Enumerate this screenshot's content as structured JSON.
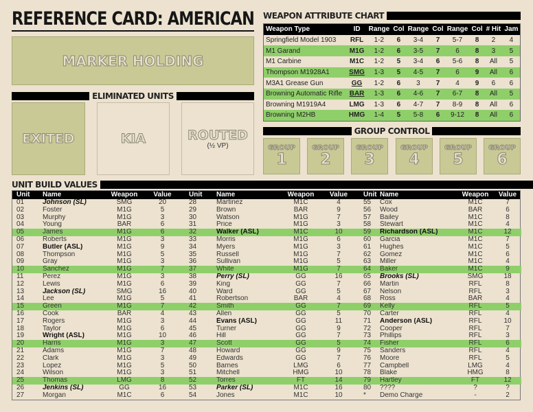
{
  "title": "REFERENCE CARD: AMERICAN",
  "marker_holding": "MARKER HOLDING",
  "eliminated": {
    "heading": "ELIMINATED UNITS",
    "exited": "EXITED",
    "kia": "KIA",
    "routed": "ROUTED",
    "routed_note": "(½ VP)"
  },
  "weapon_chart": {
    "heading": "WEAPON ATTRIBUTE CHART",
    "columns": [
      "Weapon Type",
      "ID",
      "Range",
      "Col",
      "Range",
      "Col",
      "Range",
      "Col",
      "# Hit",
      "Jam"
    ],
    "rows": [
      [
        "Springfield Model 1903",
        "RFL",
        "1-2",
        "6",
        "3-4",
        "7",
        "5-7",
        "8",
        "2",
        "4"
      ],
      [
        "M1 Garand",
        "M1G",
        "1-2",
        "6",
        "3-5",
        "7",
        "6",
        "8",
        "3",
        "5"
      ],
      [
        "M1 Carbine",
        "M1C",
        "1-2",
        "5",
        "3-4",
        "6",
        "5-6",
        "8",
        "All",
        "5"
      ],
      [
        "Thompson M1928A1",
        "SMG",
        "1-3",
        "5",
        "4-5",
        "7",
        "6",
        "9",
        "All",
        "6"
      ],
      [
        "M3A1 Grease Gun",
        "GG",
        "1-2",
        "6",
        "3",
        "7",
        "4",
        "9",
        "6",
        "6"
      ],
      [
        "Browning Automatic Rifle",
        "BAR",
        "1-3",
        "6",
        "4-6",
        "7",
        "6-7",
        "8",
        "All",
        "5"
      ],
      [
        "Browning M1919A4",
        "LMG",
        "1-3",
        "6",
        "4-7",
        "7",
        "8-9",
        "8",
        "All",
        "6"
      ],
      [
        "Browning M2HB",
        "HMG",
        "1-4",
        "5",
        "5-8",
        "6",
        "9-12",
        "8",
        "All",
        "6"
      ]
    ],
    "underlined_ids": [
      "SMG",
      "GG",
      "BAR"
    ],
    "highlight_rows": [
      1,
      3,
      5,
      7
    ]
  },
  "group_control": {
    "heading": "GROUP CONTROL",
    "label": "GROUP",
    "groups": [
      "1",
      "2",
      "3",
      "4",
      "5",
      "6"
    ]
  },
  "unit_build": {
    "heading": "UNIT BUILD VALUES",
    "columns": [
      "Unit",
      "Name",
      "Weapon",
      "Value"
    ],
    "highlight_color": "#8fcf6a",
    "groups": [
      [
        [
          "01",
          "Johnson (SL)",
          "SMG",
          "20",
          "sl"
        ],
        [
          "02",
          "Foster",
          "M1G",
          "5",
          ""
        ],
        [
          "03",
          "Murphy",
          "M1G",
          "3",
          ""
        ],
        [
          "04",
          "Young",
          "BAR",
          "6",
          ""
        ],
        [
          "05",
          "James",
          "M1G",
          "6",
          "g"
        ],
        [
          "06",
          "Roberts",
          "M1G",
          "3",
          ""
        ],
        [
          "07",
          "Butler (ASL)",
          "M1G",
          "9",
          "asl"
        ],
        [
          "08",
          "Thompson",
          "M1G",
          "5",
          ""
        ],
        [
          "09",
          "Gray",
          "M1G",
          "3",
          ""
        ],
        [
          "10",
          "Sanchez",
          "M1G",
          "7",
          "g"
        ],
        [
          "11",
          "Perez",
          "M1G",
          "3",
          ""
        ],
        [
          "12",
          "Lewis",
          "M1G",
          "6",
          ""
        ],
        [
          "13",
          "Jackson (SL)",
          "SMG",
          "16",
          "sl"
        ],
        [
          "14",
          "Lee",
          "M1G",
          "5",
          ""
        ],
        [
          "15",
          "Green",
          "M1G",
          "7",
          "g"
        ],
        [
          "16",
          "Cook",
          "BAR",
          "4",
          ""
        ],
        [
          "17",
          "Rogers",
          "M1G",
          "3",
          ""
        ],
        [
          "18",
          "Taylor",
          "M1G",
          "6",
          ""
        ],
        [
          "19",
          "Wright (ASL)",
          "M1G",
          "10",
          "asl"
        ],
        [
          "20",
          "Harris",
          "M1G",
          "3",
          "g"
        ],
        [
          "21",
          "Adams",
          "M1G",
          "7",
          ""
        ],
        [
          "22",
          "Clark",
          "M1G",
          "3",
          ""
        ],
        [
          "23",
          "Lopez",
          "M1G",
          "5",
          ""
        ],
        [
          "24",
          "Wilson",
          "M1G",
          "3",
          ""
        ],
        [
          "25",
          "Thomas",
          "LMG",
          "8",
          "g"
        ],
        [
          "26",
          "Jenkins (SL)",
          "GG",
          "16",
          "sl"
        ],
        [
          "27",
          "Morgan",
          "M1C",
          "6",
          ""
        ]
      ],
      [
        [
          "28",
          "Martinez",
          "M1C",
          "4",
          ""
        ],
        [
          "29",
          "Brown",
          "BAR",
          "9",
          ""
        ],
        [
          "30",
          "Watson",
          "M1G",
          "7",
          ""
        ],
        [
          "31",
          "Price",
          "M1G",
          "3",
          ""
        ],
        [
          "32",
          "Walker (ASL)",
          "M1C",
          "10",
          "g asl"
        ],
        [
          "33",
          "Morris",
          "M1G",
          "6",
          ""
        ],
        [
          "34",
          "Myers",
          "M1G",
          "3",
          ""
        ],
        [
          "35",
          "Russell",
          "M1G",
          "7",
          ""
        ],
        [
          "36",
          "Sullivan",
          "M1G",
          "5",
          ""
        ],
        [
          "37",
          "White",
          "M1G",
          "7",
          "g"
        ],
        [
          "38",
          "Perry (SL)",
          "GG",
          "16",
          "sl"
        ],
        [
          "39",
          "King",
          "GG",
          "7",
          ""
        ],
        [
          "40",
          "Ward",
          "GG",
          "5",
          ""
        ],
        [
          "41",
          "Robertson",
          "BAR",
          "4",
          ""
        ],
        [
          "42",
          "Smith",
          "GG",
          "7",
          "g"
        ],
        [
          "43",
          "Allen",
          "GG",
          "5",
          ""
        ],
        [
          "44",
          "Evans (ASL)",
          "GG",
          "11",
          "asl"
        ],
        [
          "45",
          "Turner",
          "GG",
          "9",
          ""
        ],
        [
          "46",
          "Hill",
          "GG",
          "7",
          ""
        ],
        [
          "47",
          "Scott",
          "GG",
          "5",
          "g"
        ],
        [
          "48",
          "Howard",
          "GG",
          "9",
          ""
        ],
        [
          "49",
          "Edwards",
          "GG",
          "7",
          ""
        ],
        [
          "50",
          "Barnes",
          "LMG",
          "6",
          ""
        ],
        [
          "51",
          "Mitchell",
          "HMG",
          "10",
          ""
        ],
        [
          "52",
          "Torres",
          "FT",
          "14",
          "g"
        ],
        [
          "53",
          "Parker (SL)",
          "M1C",
          "16",
          "sl"
        ],
        [
          "54",
          "Jones",
          "M1C",
          "10",
          ""
        ]
      ],
      [
        [
          "55",
          "Cox",
          "M1C",
          "7",
          ""
        ],
        [
          "56",
          "Wood",
          "BAR",
          "6",
          ""
        ],
        [
          "57",
          "Bailey",
          "M1C",
          "8",
          ""
        ],
        [
          "58",
          "Stewart",
          "M1C",
          "4",
          ""
        ],
        [
          "59",
          "Richardson (ASL)",
          "M1C",
          "12",
          "g asl"
        ],
        [
          "60",
          "Garcia",
          "M1C",
          "7",
          ""
        ],
        [
          "61",
          "Hughes",
          "M1C",
          "5",
          ""
        ],
        [
          "62",
          "Gomez",
          "M1C",
          "6",
          ""
        ],
        [
          "63",
          "Miller",
          "M1C",
          "4",
          ""
        ],
        [
          "64",
          "Baker",
          "M1C",
          "9",
          "g"
        ],
        [
          "65",
          "Brooks (SL)",
          "SMG",
          "18",
          "sl"
        ],
        [
          "66",
          "Martin",
          "RFL",
          "8",
          ""
        ],
        [
          "67",
          "Nelson",
          "RFL",
          "3",
          ""
        ],
        [
          "68",
          "Ross",
          "BAR",
          "4",
          ""
        ],
        [
          "69",
          "Kelly",
          "RFL",
          "5",
          "g"
        ],
        [
          "70",
          "Carter",
          "RFL",
          "4",
          ""
        ],
        [
          "71",
          "Anderson (ASL)",
          "RFL",
          "10",
          "asl"
        ],
        [
          "72",
          "Cooper",
          "RFL",
          "7",
          ""
        ],
        [
          "73",
          "Phillips",
          "RFL",
          "3",
          ""
        ],
        [
          "74",
          "Fisher",
          "RFL",
          "6",
          "g"
        ],
        [
          "75",
          "Sanders",
          "RFL",
          "4",
          ""
        ],
        [
          "76",
          "Moore",
          "RFL",
          "5",
          ""
        ],
        [
          "77",
          "Campbell",
          "LMG",
          "4",
          ""
        ],
        [
          "78",
          "Blake",
          "HMG",
          "8",
          ""
        ],
        [
          "79",
          "Hartley",
          "FT",
          "12",
          "g"
        ],
        [
          "80",
          "????",
          "?",
          "?",
          ""
        ],
        [
          "*",
          "Demo Charge",
          "-",
          "2",
          ""
        ]
      ]
    ]
  }
}
